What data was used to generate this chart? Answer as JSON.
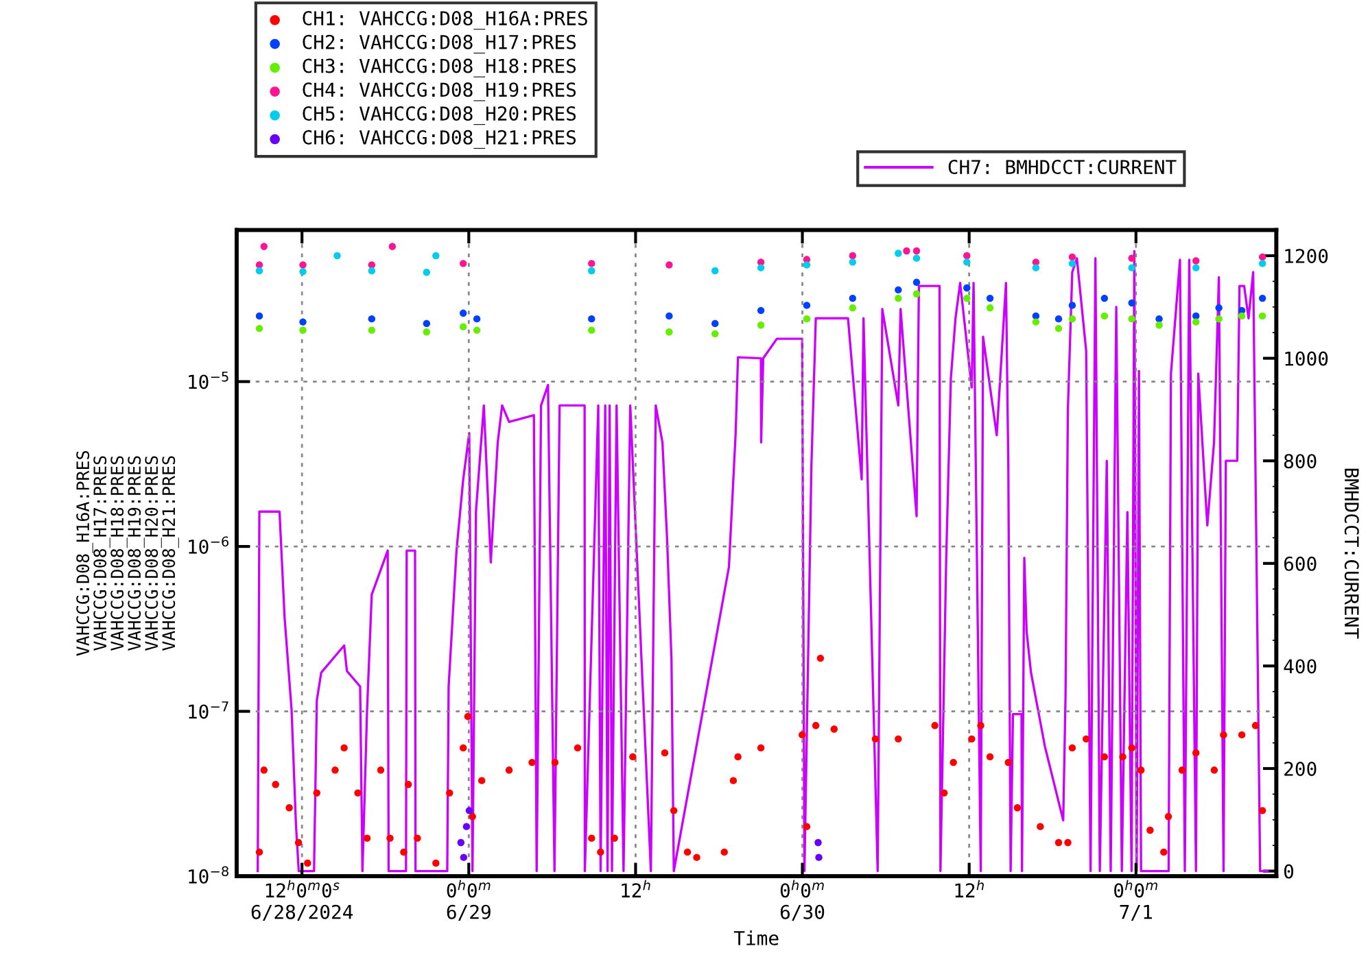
{
  "chart_data": {
    "type": "scatter",
    "xlabel": "Time",
    "ylabel": "VAHCCG:D08_H16A:PRES\nVAHCCG:D08_H17:PRES\nVAHCCG:D08_H18:PRES\nVAHCCG:D08_H19:PRES\nVAHCCG:D08_H20:PRES\nVAHCCG:D08_H21:PRES",
    "y2label": "BMHDCCT:CURRENT",
    "log": "y",
    "grid": true,
    "legend": "top",
    "marker": "circle",
    "xlim": [
      "2024-06-28T07:18",
      "2024-07-01T10:06"
    ],
    "xticks": [
      {
        "value": "2024-06-28T12:00",
        "label": "12$^{h}$0$^{m}$0$^{s}$\n6/28/2024"
      },
      {
        "value": "2024-06-29T00:00",
        "label": "0$^{h}$0$^{m}$\n6/29"
      },
      {
        "value": "2024-06-29T12:00",
        "label": "12$^{h}$"
      },
      {
        "value": "2024-06-30T00:00",
        "label": "0$^{h}$0$^{m}$\n6/30"
      },
      {
        "value": "2024-06-30T12:00",
        "label": "12$^{h}$"
      },
      {
        "value": "2024-07-01T00:00",
        "label": "0$^{h}$0$^{m}$\n7/1"
      }
    ],
    "ylim": [
      1e-08,
      8.3e-05
    ],
    "yticks": [
      {
        "value": 1e-08,
        "label": "10$^{−8}$"
      },
      {
        "value": 1e-07,
        "label": "10$^{−7}$"
      },
      {
        "value": 1e-06,
        "label": "10$^{−6}$"
      },
      {
        "value": 1e-05,
        "label": "10$^{−5}$"
      }
    ],
    "y2lim": [
      -10,
      1250
    ],
    "y2ticks": [
      0,
      200,
      400,
      600,
      800,
      1000,
      1200
    ],
    "series": [
      {
        "name": "CH1: VAHCCG:D08_H16A:PRES",
        "color": "#ff0000",
        "x": [
          "2024-06-28T08:56",
          "2024-06-28T09:16",
          "2024-06-28T10:06",
          "2024-06-28T11:05",
          "2024-06-28T11:45",
          "2024-06-28T12:24",
          "2024-06-28T13:04",
          "2024-06-28T14:23",
          "2024-06-28T15:02",
          "2024-06-28T16:01",
          "2024-06-28T16:41",
          "2024-06-28T17:40",
          "2024-06-28T18:20",
          "2024-06-28T19:19",
          "2024-06-28T19:39",
          "2024-06-28T20:18",
          "2024-06-28T21:38",
          "2024-06-28T22:37",
          "2024-06-28T23:36",
          "2024-06-28T23:56",
          "2024-06-29T00:16",
          "2024-06-29T00:56",
          "2024-06-29T02:54",
          "2024-06-29T04:33",
          "2024-06-29T06:12",
          "2024-06-29T07:50",
          "2024-06-29T08:50",
          "2024-06-29T09:29",
          "2024-06-29T10:29",
          "2024-06-29T11:48",
          "2024-06-29T14:06",
          "2024-06-29T14:45",
          "2024-06-29T15:44",
          "2024-06-29T16:24",
          "2024-06-29T18:23",
          "2024-06-29T19:02",
          "2024-06-29T19:22",
          "2024-06-29T21:01",
          "2024-06-29T23:59",
          "2024-06-30T00:19",
          "2024-06-30T00:58",
          "2024-06-30T01:18",
          "2024-06-30T02:17",
          "2024-06-30T05:15",
          "2024-06-30T06:54",
          "2024-06-30T09:32",
          "2024-06-30T10:12",
          "2024-06-30T10:52",
          "2024-06-30T12:11",
          "2024-06-30T12:50",
          "2024-06-30T13:30",
          "2024-06-30T14:49",
          "2024-06-30T15:28",
          "2024-06-30T17:07",
          "2024-06-30T18:26",
          "2024-06-30T19:06",
          "2024-06-30T19:25",
          "2024-06-30T20:25",
          "2024-06-30T21:44",
          "2024-06-30T23:03",
          "2024-06-30T23:42",
          "2024-07-01T00:22",
          "2024-07-01T01:01",
          "2024-07-01T02:00",
          "2024-07-01T02:20",
          "2024-07-01T03:19",
          "2024-07-01T04:19",
          "2024-07-01T05:38",
          "2024-07-01T06:18",
          "2024-07-01T07:37",
          "2024-07-01T08:36",
          "2024-07-01T09:06"
        ],
        "values": [
          1.4e-08,
          4.4e-08,
          3.6e-08,
          2.6e-08,
          1.6e-08,
          1.2e-08,
          3.2e-08,
          4.4e-08,
          6e-08,
          3.2e-08,
          1.7e-08,
          4.4e-08,
          1.7e-08,
          1.4e-08,
          3.6e-08,
          1.7e-08,
          1.2e-08,
          3.2e-08,
          6e-08,
          9.3e-08,
          2.3e-08,
          3.8e-08,
          4.4e-08,
          4.9e-08,
          4.9e-08,
          6e-08,
          1.7e-08,
          1.4e-08,
          1.7e-08,
          5.3e-08,
          5.6e-08,
          2.5e-08,
          1.4e-08,
          1.3e-08,
          1.4e-08,
          3.8e-08,
          5.3e-08,
          6e-08,
          7.2e-08,
          2e-08,
          8.2e-08,
          2.1e-07,
          7.8e-08,
          6.8e-08,
          6.8e-08,
          8.2e-08,
          3.2e-08,
          4.9e-08,
          6.8e-08,
          8.2e-08,
          5.3e-08,
          4.9e-08,
          2.6e-08,
          2e-08,
          1.6e-08,
          1.6e-08,
          6e-08,
          6.8e-08,
          5.3e-08,
          5.3e-08,
          6e-08,
          4.4e-08,
          1.9e-08,
          1.4e-08,
          2.3e-08,
          4.4e-08,
          5.6e-08,
          4.4e-08,
          7.2e-08,
          7.2e-08,
          8.2e-08,
          2.5e-08
        ]
      },
      {
        "name": "CH2: VAHCCG:D08_H17:PRES",
        "color": "#0040ff",
        "x": [
          "2024-06-28T08:56",
          "2024-06-28T12:04",
          "2024-06-28T17:01",
          "2024-06-28T20:58",
          "2024-06-28T23:36",
          "2024-06-29T00:35",
          "2024-06-29T08:50",
          "2024-06-29T14:25",
          "2024-06-29T17:43",
          "2024-06-29T21:01",
          "2024-06-30T00:19",
          "2024-06-30T03:37",
          "2024-06-30T06:54",
          "2024-06-30T08:13",
          "2024-06-30T11:50",
          "2024-06-30T13:30",
          "2024-06-30T16:48",
          "2024-06-30T18:26",
          "2024-06-30T19:25",
          "2024-06-30T21:44",
          "2024-06-30T23:42",
          "2024-07-01T01:40",
          "2024-07-01T04:19",
          "2024-07-01T05:58",
          "2024-07-01T07:37",
          "2024-07-01T09:06"
        ],
        "values": [
          2.5e-05,
          2.3e-05,
          2.4e-05,
          2.25e-05,
          2.6e-05,
          2.4e-05,
          2.4e-05,
          2.5e-05,
          2.25e-05,
          2.7e-05,
          2.9e-05,
          3.2e-05,
          3.6e-05,
          4e-05,
          3.7e-05,
          3.2e-05,
          2.5e-05,
          2.4e-05,
          2.9e-05,
          3.2e-05,
          3e-05,
          2.4e-05,
          2.5e-05,
          2.8e-05,
          2.7e-05,
          3.2e-05
        ]
      },
      {
        "name": "CH3: VAHCCG:D08_H18:PRES",
        "color": "#66ee00",
        "x": [
          "2024-06-28T08:56",
          "2024-06-28T12:04",
          "2024-06-28T17:01",
          "2024-06-28T20:58",
          "2024-06-28T23:36",
          "2024-06-29T00:35",
          "2024-06-29T08:50",
          "2024-06-29T14:25",
          "2024-06-29T17:43",
          "2024-06-29T21:01",
          "2024-06-30T00:19",
          "2024-06-30T03:37",
          "2024-06-30T06:54",
          "2024-06-30T08:13",
          "2024-06-30T11:50",
          "2024-06-30T13:30",
          "2024-06-30T16:48",
          "2024-06-30T18:26",
          "2024-06-30T19:25",
          "2024-06-30T21:44",
          "2024-06-30T23:42",
          "2024-07-01T01:40",
          "2024-07-01T04:19",
          "2024-07-01T05:58",
          "2024-07-01T07:37",
          "2024-07-01T09:06"
        ],
        "values": [
          2.1e-05,
          2.05e-05,
          2.05e-05,
          2e-05,
          2.15e-05,
          2.05e-05,
          2.05e-05,
          2e-05,
          1.95e-05,
          2.2e-05,
          2.4e-05,
          2.8e-05,
          3.2e-05,
          3.4e-05,
          3.2e-05,
          2.8e-05,
          2.3e-05,
          2.1e-05,
          2.4e-05,
          2.5e-05,
          2.4e-05,
          2.2e-05,
          2.3e-05,
          2.4e-05,
          2.5e-05,
          2.5e-05
        ]
      },
      {
        "name": "CH4: VAHCCG:D08_H19:PRES",
        "color": "#ff1493",
        "x": [
          "2024-06-28T08:56",
          "2024-06-28T09:16",
          "2024-06-28T12:04",
          "2024-06-28T17:01",
          "2024-06-28T18:30",
          "2024-06-28T23:36",
          "2024-06-29T08:50",
          "2024-06-29T14:25",
          "2024-06-29T21:01",
          "2024-06-30T00:19",
          "2024-06-30T03:37",
          "2024-06-30T07:30",
          "2024-06-30T08:13",
          "2024-06-30T11:50",
          "2024-06-30T16:48",
          "2024-06-30T19:25",
          "2024-06-30T23:42",
          "2024-07-01T04:19",
          "2024-07-01T09:06"
        ],
        "values": [
          5.1e-05,
          6.6e-05,
          5.1e-05,
          5.1e-05,
          6.6e-05,
          5.2e-05,
          5.2e-05,
          5.1e-05,
          5.3e-05,
          5.5e-05,
          5.8e-05,
          6.2e-05,
          6.2e-05,
          5.8e-05,
          5.3e-05,
          5.7e-05,
          5.6e-05,
          5.4e-05,
          5.7e-05
        ]
      },
      {
        "name": "CH5: VAHCCG:D08_H20:PRES",
        "color": "#00ccee",
        "x": [
          "2024-06-28T08:56",
          "2024-06-28T12:04",
          "2024-06-28T14:32",
          "2024-06-28T17:01",
          "2024-06-28T20:58",
          "2024-06-28T21:38",
          "2024-06-29T08:50",
          "2024-06-29T17:43",
          "2024-06-29T21:01",
          "2024-06-30T00:19",
          "2024-06-30T03:37",
          "2024-06-30T06:54",
          "2024-06-30T08:13",
          "2024-06-30T11:50",
          "2024-06-30T16:48",
          "2024-06-30T19:25",
          "2024-06-30T23:42",
          "2024-07-01T04:19",
          "2024-07-01T09:06"
        ],
        "values": [
          4.7e-05,
          4.65e-05,
          5.8e-05,
          4.7e-05,
          4.6e-05,
          5.8e-05,
          4.7e-05,
          4.7e-05,
          4.9e-05,
          5.1e-05,
          5.3e-05,
          6e-05,
          5.6e-05,
          5.3e-05,
          4.9e-05,
          5.2e-05,
          4.9e-05,
          4.9e-05,
          5.2e-05
        ]
      },
      {
        "name": "CH6: VAHCCG:D08_H21:PRES",
        "color": "#6600ff",
        "x": [
          "2024-06-28T23:26",
          "2024-06-28T23:38",
          "2024-06-28T23:50",
          "2024-06-29T00:02",
          "2024-06-30T01:08",
          "2024-06-30T01:11"
        ],
        "values": [
          1.6e-08,
          1.3e-08,
          2e-08,
          2.5e-08,
          1.6e-08,
          1.3e-08
        ]
      },
      {
        "name": "CH7: BMHDCCT:CURRENT",
        "color": "#cc00ff",
        "type": "line",
        "axis": "y2",
        "marker": "none",
        "line_style": "solid",
        "x": [
          "2024-06-28T08:49",
          "2024-06-28T08:56",
          "2024-06-28T10:23",
          "2024-06-28T10:45",
          "2024-06-28T11:15",
          "2024-06-28T11:34",
          "2024-06-28T11:46",
          "2024-06-28T12:52",
          "2024-06-28T13:04",
          "2024-06-28T13:23",
          "2024-06-28T15:02",
          "2024-06-28T15:14",
          "2024-06-28T16:11",
          "2024-06-28T16:21",
          "2024-06-28T16:41",
          "2024-06-28T17:01",
          "2024-06-28T18:10",
          "2024-06-28T18:14",
          "2024-06-28T19:29",
          "2024-06-28T19:32",
          "2024-06-28T20:08",
          "2024-06-28T20:10",
          "2024-06-28T22:27",
          "2024-06-28T22:33",
          "2024-06-28T23:07",
          "2024-06-28T23:36",
          "2024-06-29T00:02",
          "2024-06-29T00:16",
          "2024-06-29T00:31",
          "2024-06-29T01:05",
          "2024-06-29T01:35",
          "2024-06-29T02:05",
          "2024-06-29T02:24",
          "2024-06-29T02:54",
          "2024-06-29T04:41",
          "2024-06-29T04:53",
          "2024-06-29T05:12",
          "2024-06-29T05:42",
          "2024-06-29T06:10",
          "2024-06-29T06:32",
          "2024-06-29T08:20",
          "2024-06-29T08:21",
          "2024-06-29T09:19",
          "2024-06-29T09:29",
          "2024-06-29T09:49",
          "2024-06-29T09:59",
          "2024-06-29T10:08",
          "2024-06-29T10:18",
          "2024-06-29T10:38",
          "2024-06-29T11:08",
          "2024-06-29T11:37",
          "2024-06-29T13:06",
          "2024-06-29T13:27",
          "2024-06-29T13:56",
          "2024-06-29T14:16",
          "2024-06-29T14:35",
          "2024-06-29T14:45",
          "2024-06-29T18:43",
          "2024-06-29T19:12",
          "2024-06-29T19:22",
          "2024-06-29T21:01",
          "2024-06-29T21:02",
          "2024-06-29T21:11",
          "2024-06-29T22:10",
          "2024-06-29T23:59",
          "2024-06-30T00:09",
          "2024-06-30T00:39",
          "2024-06-30T00:58",
          "2024-06-30T03:17",
          "2024-06-30T04:16",
          "2024-06-30T04:24",
          "2024-06-30T05:25",
          "2024-06-30T05:45",
          "2024-06-30T06:54",
          "2024-06-30T07:04",
          "2024-06-30T08:13",
          "2024-06-30T08:23",
          "2024-06-30T09:52",
          "2024-06-30T09:56",
          "2024-06-30T10:21",
          "2024-06-30T10:41",
          "2024-06-30T11:01",
          "2024-06-30T11:21",
          "2024-06-30T12:11",
          "2024-06-30T12:19",
          "2024-06-30T12:50",
          "2024-06-30T13:00",
          "2024-06-30T13:59",
          "2024-06-30T14:39",
          "2024-06-30T14:49",
          "2024-06-30T14:59",
          "2024-06-30T15:09",
          "2024-06-30T15:46",
          "2024-06-30T15:48",
          "2024-06-30T15:58",
          "2024-06-30T16:08",
          "2024-06-30T16:27",
          "2024-06-30T17:27",
          "2024-06-30T18:46",
          "2024-06-30T18:56",
          "2024-06-30T19:06",
          "2024-06-30T19:25",
          "2024-06-30T19:45",
          "2024-06-30T20:25",
          "2024-06-30T20:44",
          "2024-06-30T21:05",
          "2024-06-30T21:24",
          "2024-06-30T21:54",
          "2024-06-30T22:11",
          "2024-06-30T22:35",
          "2024-06-30T22:59",
          "2024-06-30T23:23",
          "2024-06-30T23:41",
          "2024-06-30T23:53",
          "2024-07-01T00:03",
          "2024-07-01T00:13",
          "2024-07-01T00:22",
          "2024-07-01T02:21",
          "2024-07-01T02:31",
          "2024-07-01T03:10",
          "2024-07-01T03:31",
          "2024-07-01T03:50",
          "2024-07-01T04:19",
          "2024-07-01T04:29",
          "2024-07-01T05:08",
          "2024-07-01T05:37",
          "2024-07-01T05:58",
          "2024-07-01T06:18",
          "2024-07-01T06:28",
          "2024-07-01T07:17",
          "2024-07-01T07:27",
          "2024-07-01T07:47",
          "2024-07-01T08:06",
          "2024-07-01T08:26",
          "2024-07-01T08:56",
          "2024-07-01T09:28"
        ],
        "values": [
          0,
          701,
          701,
          494,
          315,
          90,
          0,
          0,
          333,
          387,
          440,
          390,
          360,
          0,
          315,
          539,
          625,
          0,
          0,
          625,
          625,
          0,
          0,
          360,
          625,
          764,
          854,
          0,
          701,
          908,
          602,
          836,
          908,
          876,
          889,
          0,
          908,
          948,
          0,
          908,
          908,
          0,
          908,
          0,
          908,
          0,
          908,
          0,
          908,
          0,
          908,
          0,
          908,
          836,
          648,
          413,
          0,
          593,
          854,
          1002,
          1000,
          836,
          1000,
          1038,
          1038,
          0,
          791,
          1078,
          1078,
          764,
          1078,
          0,
          1096,
          908,
          1096,
          692,
          1141,
          1141,
          0,
          611,
          961,
          1078,
          1147,
          943,
          1147,
          0,
          1042,
          850,
          1147,
          791,
          0,
          306,
          306,
          0,
          611,
          467,
          387,
          243,
          99,
          341,
          899,
          1168,
          1195,
          1015,
          0,
          1195,
          0,
          800,
          0,
          1100,
          0,
          700,
          0,
          1209,
          0,
          975,
          0,
          0,
          970,
          1192,
          0,
          1192,
          0,
          970,
          674,
          836,
          1158,
          0,
          800,
          800,
          1141,
          1141,
          1078,
          1168,
          0,
          0
        ]
      }
    ]
  }
}
